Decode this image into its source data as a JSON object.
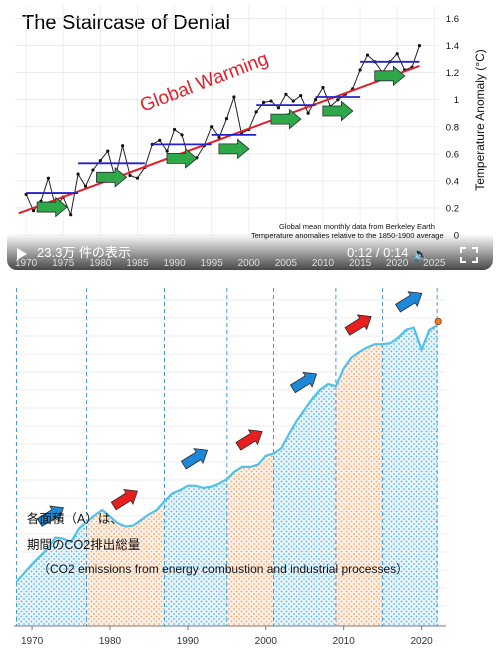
{
  "video": {
    "views_label": "23.3万 件の表示",
    "time_label": "0:12 / 0:14",
    "volume_icon": "volume-icon",
    "play_icon": "play-icon",
    "fullscreen_icon": "fullscreen-icon"
  },
  "annotations": {
    "area_line1": "各面積（A）は、",
    "area_line2": "期間のCO2排出総量",
    "area_line3": "（CO2 emissions from energy combustion and industrial processes）"
  },
  "colors": {
    "trend": "#e0202a",
    "step": "#2222cc",
    "green_arrow": "#2fa84a",
    "blue_arrow": "#1e88d8",
    "red_arrow": "#e81f1f",
    "co2_line": "#52c0ea",
    "dot_blue": "#5db2e6",
    "dot_orange": "#f2a46a"
  },
  "chart_data": [
    {
      "type": "line",
      "title": "The Staircase of Denial",
      "annotation": "Global Warming",
      "source_note_1": "Global mean monthly data from Berkeley Earth",
      "source_note_2": "Temperature anomalies relative to the 1850-1900 average",
      "ylabel": "Temperature Anomaly (°C)",
      "x_ticks": [
        1970,
        1975,
        1980,
        1985,
        1990,
        1995,
        2000,
        2005,
        2010,
        2015,
        2020,
        2025
      ],
      "y_ticks": [
        0,
        0.2,
        0.4,
        0.6,
        0.8,
        1,
        1.2,
        1.4,
        1.6
      ],
      "xlim": [
        1968.5,
        2025.5
      ],
      "ylim": [
        0,
        1.7
      ],
      "trend": {
        "x": [
          1969,
          2023
        ],
        "y": [
          0.16,
          1.25
        ]
      },
      "steps": [
        {
          "x": [
            1970,
            1977
          ],
          "y": 0.31
        },
        {
          "x": [
            1977,
            1986
          ],
          "y": 0.53
        },
        {
          "x": [
            1987,
            1995
          ],
          "y": 0.67
        },
        {
          "x": [
            1995,
            2001
          ],
          "y": 0.74
        },
        {
          "x": [
            2001,
            2009
          ],
          "y": 0.96
        },
        {
          "x": [
            2009,
            2015
          ],
          "y": 1.02
        },
        {
          "x": [
            2015,
            2023
          ],
          "y": 1.28
        }
      ],
      "series": [
        {
          "x": [
            1970,
            1971,
            1972,
            1973,
            1974,
            1975,
            1976,
            1977,
            1978,
            1979,
            1980,
            1981,
            1982,
            1983,
            1984,
            1985,
            1986,
            1987,
            1988,
            1989,
            1990,
            1991,
            1992,
            1993,
            1994,
            1995,
            1996,
            1997,
            1998,
            1999,
            2000,
            2001,
            2002,
            2003,
            2004,
            2005,
            2006,
            2007,
            2008,
            2009,
            2010,
            2011,
            2012,
            2013,
            2014,
            2015,
            2016,
            2017,
            2018,
            2019,
            2020,
            2021,
            2022,
            2023
          ],
          "y": [
            0.3,
            0.18,
            0.25,
            0.42,
            0.2,
            0.28,
            0.15,
            0.45,
            0.36,
            0.48,
            0.55,
            0.62,
            0.42,
            0.66,
            0.44,
            0.42,
            0.5,
            0.67,
            0.7,
            0.62,
            0.78,
            0.74,
            0.55,
            0.57,
            0.66,
            0.8,
            0.72,
            0.86,
            1.02,
            0.75,
            0.78,
            0.91,
            0.98,
            0.99,
            0.94,
            1.04,
            0.99,
            1.03,
            0.9,
            1.0,
            1.09,
            0.95,
            1.0,
            1.04,
            1.08,
            1.22,
            1.33,
            1.28,
            1.2,
            1.28,
            1.34,
            1.22,
            1.24,
            1.4
          ]
        }
      ]
    },
    {
      "type": "area",
      "x_ticks": [
        1970,
        1980,
        1990,
        2000,
        2010,
        2020
      ],
      "xlim": [
        1968,
        2025
      ],
      "period_boundaries": [
        1968,
        1977,
        1987,
        1995,
        2001,
        2009,
        2015,
        2022
      ],
      "series": [
        {
          "x": [
            1968,
            1969,
            1970,
            1971,
            1972,
            1973,
            1974,
            1975,
            1976,
            1977,
            1978,
            1979,
            1980,
            1981,
            1982,
            1983,
            1984,
            1985,
            1986,
            1987,
            1988,
            1989,
            1990,
            1991,
            1992,
            1993,
            1994,
            1995,
            1996,
            1997,
            1998,
            1999,
            2000,
            2001,
            2002,
            2003,
            2004,
            2005,
            2006,
            2007,
            2008,
            2009,
            2010,
            2011,
            2012,
            2013,
            2014,
            2015,
            2016,
            2017,
            2018,
            2019,
            2020,
            2021,
            2022
          ],
          "y": [
            14.0,
            14.8,
            15.6,
            16.3,
            17.0,
            18.0,
            17.9,
            17.6,
            18.8,
            19.4,
            20.0,
            20.5,
            19.9,
            19.3,
            19.0,
            19.1,
            19.6,
            20.1,
            20.5,
            21.3,
            22.0,
            22.3,
            22.7,
            22.7,
            22.5,
            22.6,
            22.9,
            23.3,
            24.0,
            24.4,
            24.4,
            24.6,
            25.4,
            25.6,
            26.1,
            27.4,
            28.6,
            29.6,
            30.6,
            31.4,
            31.9,
            31.7,
            33.3,
            34.3,
            34.8,
            35.2,
            35.5,
            35.5,
            35.6,
            36.1,
            36.8,
            37.0,
            35.0,
            36.8,
            37.2
          ]
        }
      ]
    }
  ]
}
